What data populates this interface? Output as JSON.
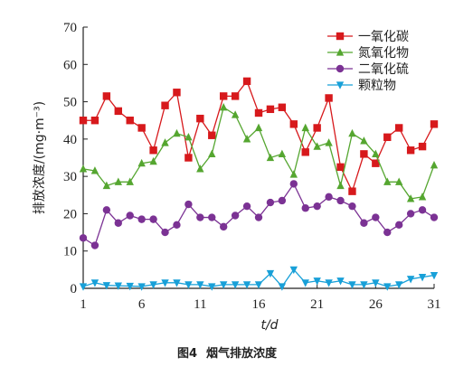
{
  "chart_data": {
    "type": "line",
    "xlabel": "t/d",
    "ylabel": "排放浓度/(mg·m⁻³)",
    "xlim": [
      1,
      31
    ],
    "ylim": [
      0,
      70
    ],
    "xticks": [
      1,
      6,
      11,
      16,
      21,
      26,
      31
    ],
    "yticks": [
      0,
      10,
      20,
      30,
      40,
      50,
      60,
      70
    ],
    "legend_position": "top-right",
    "caption_number": "图4",
    "caption_text": "烟气排放浓度",
    "x": [
      1,
      2,
      3,
      4,
      5,
      6,
      7,
      8,
      9,
      10,
      11,
      12,
      13,
      14,
      15,
      16,
      17,
      18,
      19,
      20,
      21,
      22,
      23,
      24,
      25,
      26,
      27,
      28,
      29,
      30,
      31
    ],
    "series": [
      {
        "name": "一氧化碳",
        "color": "#d7191c",
        "marker": "square",
        "values": [
          45,
          45,
          51.5,
          47.5,
          45,
          43,
          37,
          49,
          52.5,
          35,
          45.5,
          41,
          51.5,
          51.5,
          55.5,
          47,
          48,
          48.5,
          44,
          36.5,
          43,
          51,
          32.5,
          26,
          36,
          33.5,
          40.5,
          43,
          37,
          38,
          44
        ]
      },
      {
        "name": "氮氧化物",
        "color": "#55a630",
        "marker": "triangle-up",
        "values": [
          32,
          31.5,
          27.5,
          28.5,
          28.5,
          33.5,
          34,
          39,
          41.5,
          40.5,
          32,
          36,
          48.5,
          46.5,
          40,
          43,
          35,
          36,
          30.5,
          43,
          38,
          39,
          27.5,
          41.5,
          39.5,
          36,
          28.5,
          28.5,
          24,
          24.5,
          33
        ]
      },
      {
        "name": "二氧化硫",
        "color": "#7b3294",
        "marker": "circle",
        "values": [
          13.5,
          11.5,
          21,
          17.5,
          19.5,
          18.5,
          18.5,
          15,
          17,
          22.5,
          19,
          19,
          16.5,
          19.5,
          22,
          19,
          23,
          23.5,
          28,
          21.5,
          22,
          24.5,
          23.5,
          22,
          17.5,
          19,
          15,
          17,
          20,
          21,
          19
        ]
      },
      {
        "name": "颗粒物",
        "color": "#18a0d8",
        "marker": "triangle-down",
        "values": [
          0.5,
          1.5,
          0.8,
          0.7,
          0.6,
          0.5,
          1,
          1.5,
          1.5,
          1,
          1,
          0.5,
          1,
          1,
          1,
          1,
          4,
          0.5,
          5,
          1.5,
          2,
          1.5,
          2,
          1,
          1,
          1.5,
          0.5,
          1,
          2.5,
          3,
          3.5
        ]
      }
    ]
  }
}
